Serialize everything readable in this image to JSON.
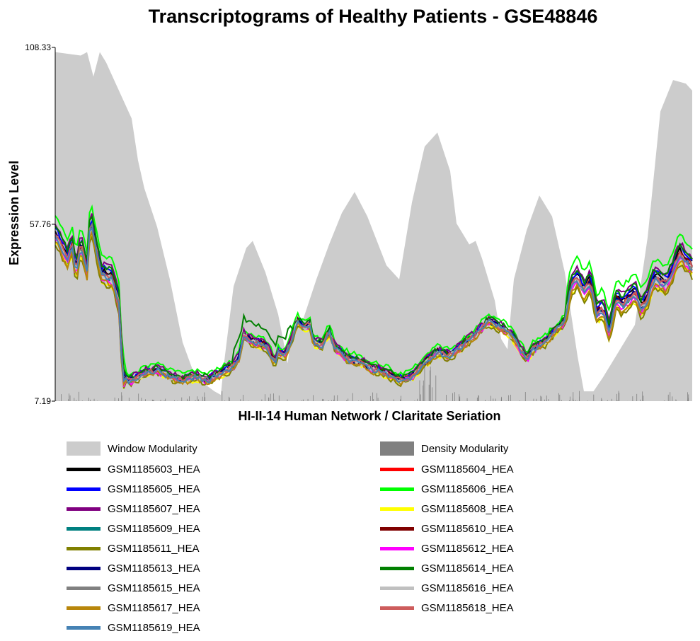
{
  "chart_data": {
    "type": "line",
    "title": "Transcriptograms of Healthy Patients - GSE48846",
    "xlabel": "HI-II-14 Human Network / Claritate Seriation",
    "ylabel": "Expression Level",
    "ylim": [
      7.19,
      108.33
    ],
    "yticks": [
      "108.33",
      "57.76",
      "7.19"
    ],
    "x_range": [
      0,
      100
    ],
    "grid": false,
    "legend_position": "bottom",
    "window_modularity": {
      "name": "Window Modularity",
      "color": "#cccccc",
      "points": [
        [
          0,
          107
        ],
        [
          4,
          106
        ],
        [
          5,
          107
        ],
        [
          6,
          100
        ],
        [
          7,
          107
        ],
        [
          8,
          104
        ],
        [
          9,
          100
        ],
        [
          10,
          96
        ],
        [
          12,
          88
        ],
        [
          13,
          76
        ],
        [
          14,
          68
        ],
        [
          16,
          57
        ],
        [
          18,
          42
        ],
        [
          20,
          24
        ],
        [
          22,
          14
        ],
        [
          25,
          10
        ],
        [
          26,
          9
        ],
        [
          26.5,
          18
        ],
        [
          28,
          40
        ],
        [
          30,
          51
        ],
        [
          31,
          53
        ],
        [
          33,
          44
        ],
        [
          35,
          32
        ],
        [
          36.5,
          18
        ],
        [
          37,
          26
        ],
        [
          39,
          31
        ],
        [
          41,
          42
        ],
        [
          43,
          52
        ],
        [
          45,
          61
        ],
        [
          47,
          67
        ],
        [
          49,
          60
        ],
        [
          52,
          46
        ],
        [
          54,
          42
        ],
        [
          56,
          64
        ],
        [
          58,
          80
        ],
        [
          60,
          84
        ],
        [
          62,
          73
        ],
        [
          63,
          58
        ],
        [
          65,
          52
        ],
        [
          66,
          53
        ],
        [
          67,
          48
        ],
        [
          69,
          36
        ],
        [
          70,
          25
        ],
        [
          71,
          22
        ],
        [
          72,
          42
        ],
        [
          74,
          56
        ],
        [
          76,
          66
        ],
        [
          78,
          60
        ],
        [
          80,
          44
        ],
        [
          82,
          20
        ],
        [
          83,
          10
        ],
        [
          84.5,
          10
        ],
        [
          86,
          14
        ],
        [
          88,
          20
        ],
        [
          91,
          29
        ],
        [
          93,
          54
        ],
        [
          94,
          72
        ],
        [
          95,
          90
        ],
        [
          97,
          99
        ],
        [
          99,
          98
        ],
        [
          100,
          96
        ]
      ]
    },
    "density_modularity": {
      "name": "Density Modularity",
      "color": "#808080"
    },
    "series": [
      {
        "name": "GSM1185603_HEA",
        "color": "#000000"
      },
      {
        "name": "GSM1185604_HEA",
        "color": "#ff0000"
      },
      {
        "name": "GSM1185605_HEA",
        "color": "#0000ff"
      },
      {
        "name": "GSM1185606_HEA",
        "color": "#00ff00"
      },
      {
        "name": "GSM1185607_HEA",
        "color": "#800080"
      },
      {
        "name": "GSM1185608_HEA",
        "color": "#ffff00"
      },
      {
        "name": "GSM1185609_HEA",
        "color": "#008080"
      },
      {
        "name": "GSM1185610_HEA",
        "color": "#800000"
      },
      {
        "name": "GSM1185611_HEA",
        "color": "#808000"
      },
      {
        "name": "GSM1185612_HEA",
        "color": "#ff00ff"
      },
      {
        "name": "GSM1185613_HEA",
        "color": "#000080"
      },
      {
        "name": "GSM1185614_HEA",
        "color": "#008000"
      },
      {
        "name": "GSM1185615_HEA",
        "color": "#808080"
      },
      {
        "name": "GSM1185616_HEA",
        "color": "#c0c0c0"
      },
      {
        "name": "GSM1185617_HEA",
        "color": "#b8860b"
      },
      {
        "name": "GSM1185618_HEA",
        "color": "#cd5c5c"
      },
      {
        "name": "GSM1185619_HEA",
        "color": "#4682b4"
      }
    ],
    "base_profile": [
      [
        0,
        55
      ],
      [
        2,
        47
      ],
      [
        2.6,
        52
      ],
      [
        3.3,
        43
      ],
      [
        4,
        52
      ],
      [
        5,
        44
      ],
      [
        5.5,
        59
      ],
      [
        6.3,
        52
      ],
      [
        7.2,
        43
      ],
      [
        9,
        42
      ],
      [
        10,
        35
      ],
      [
        10.6,
        13
      ],
      [
        12,
        13
      ],
      [
        14,
        15
      ],
      [
        16,
        16
      ],
      [
        18,
        14
      ],
      [
        20,
        13
      ],
      [
        22,
        14
      ],
      [
        24,
        13
      ],
      [
        26,
        15
      ],
      [
        28,
        17
      ],
      [
        29,
        20
      ],
      [
        29.5,
        26
      ],
      [
        31,
        24
      ],
      [
        33,
        23
      ],
      [
        34.5,
        18
      ],
      [
        35,
        21
      ],
      [
        36,
        20
      ],
      [
        37,
        24
      ],
      [
        38,
        30
      ],
      [
        39,
        28
      ],
      [
        40,
        29
      ],
      [
        40.5,
        24
      ],
      [
        42,
        23
      ],
      [
        43,
        27
      ],
      [
        44,
        22
      ],
      [
        46,
        19
      ],
      [
        48,
        18
      ],
      [
        50,
        16
      ],
      [
        52,
        15
      ],
      [
        54,
        13
      ],
      [
        56,
        14
      ],
      [
        58,
        18
      ],
      [
        60,
        21
      ],
      [
        62,
        20
      ],
      [
        64,
        23
      ],
      [
        66,
        26
      ],
      [
        68,
        30
      ],
      [
        69,
        29
      ],
      [
        71,
        27
      ],
      [
        72,
        25
      ],
      [
        74,
        19
      ],
      [
        75,
        22
      ],
      [
        77,
        24
      ],
      [
        80,
        30
      ],
      [
        81,
        40
      ],
      [
        82,
        42
      ],
      [
        83,
        38
      ],
      [
        84,
        41
      ],
      [
        85,
        32
      ],
      [
        86,
        33
      ],
      [
        87,
        26
      ],
      [
        88,
        36
      ],
      [
        89,
        34
      ],
      [
        91,
        38
      ],
      [
        92,
        33
      ],
      [
        93,
        36
      ],
      [
        94,
        42
      ],
      [
        96,
        40
      ],
      [
        98,
        49
      ],
      [
        100,
        45
      ]
    ]
  }
}
